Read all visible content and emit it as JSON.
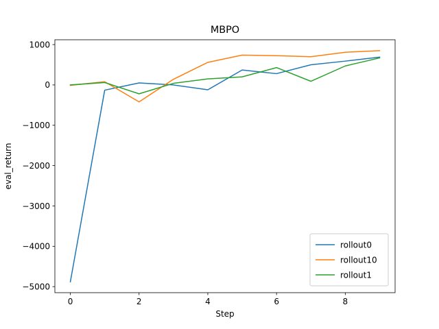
{
  "chart_data": {
    "type": "line",
    "title": "MBPO",
    "xlabel": "Step",
    "ylabel": "eval_return",
    "xlim": [
      -0.45,
      9.45
    ],
    "ylim": [
      -5150,
      1120
    ],
    "xticks": [
      0,
      2,
      4,
      6,
      8
    ],
    "yticks": [
      -5000,
      -4000,
      -3000,
      -2000,
      -1000,
      0,
      1000
    ],
    "grid": false,
    "legend_position": "lower-right",
    "x": [
      0,
      1,
      2,
      3,
      4,
      5,
      6,
      7,
      8,
      9
    ],
    "series": [
      {
        "name": "rollout0",
        "color": "#1f77b4",
        "values": [
          -4880,
          -130,
          50,
          0,
          -120,
          370,
          280,
          500,
          590,
          690
        ]
      },
      {
        "name": "rollout10",
        "color": "#ff7f0e",
        "values": [
          -10,
          80,
          -420,
          140,
          560,
          740,
          725,
          700,
          810,
          850
        ]
      },
      {
        "name": "rollout1",
        "color": "#2ca02c",
        "values": [
          0,
          60,
          -220,
          40,
          150,
          200,
          430,
          90,
          470,
          670
        ]
      }
    ]
  }
}
